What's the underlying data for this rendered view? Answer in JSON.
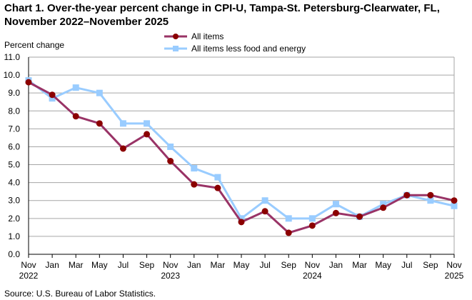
{
  "chart_data": {
    "type": "line",
    "title": "Chart 1. Over-the-year percent change in CPI-U, Tampa-St. Petersburg-Clearwater, FL, November 2022–November 2025",
    "ylabel": "Percent change",
    "xlabel": "",
    "ylim": [
      0,
      11
    ],
    "yticks": [
      "0.0",
      "1.0",
      "2.0",
      "3.0",
      "4.0",
      "5.0",
      "6.0",
      "7.0",
      "8.0",
      "9.0",
      "10.0",
      "11.0"
    ],
    "grid": true,
    "legend": "top-center",
    "x": [
      "Nov 2022",
      "Jan 2023",
      "Mar 2023",
      "May 2023",
      "Jul 2023",
      "Sep 2023",
      "Nov 2023",
      "Jan 2024",
      "Mar 2024",
      "May 2024",
      "Jul 2024",
      "Sep 2024",
      "Nov 2024",
      "Jan 2025",
      "Mar 2025",
      "May 2025",
      "Jul 2025",
      "Sep 2025",
      "Nov 2025"
    ],
    "xtick_labels": [
      [
        "Nov",
        "2022"
      ],
      [
        "Jan",
        ""
      ],
      [
        "Mar",
        ""
      ],
      [
        "May",
        ""
      ],
      [
        "Jul",
        ""
      ],
      [
        "Sep",
        ""
      ],
      [
        "Nov",
        "2023"
      ],
      [
        "Jan",
        ""
      ],
      [
        "Mar",
        ""
      ],
      [
        "May",
        ""
      ],
      [
        "Jul",
        ""
      ],
      [
        "Sep",
        ""
      ],
      [
        "Nov",
        "2024"
      ],
      [
        "Jan",
        ""
      ],
      [
        "Mar",
        ""
      ],
      [
        "May",
        ""
      ],
      [
        "Jul",
        ""
      ],
      [
        "Sep",
        ""
      ],
      [
        "Nov",
        "2025"
      ]
    ],
    "series": [
      {
        "name": "All items",
        "color": "#993366",
        "marker": "circle",
        "marker_color": "#8b0000",
        "values": [
          9.6,
          8.9,
          7.7,
          7.3,
          5.9,
          6.7,
          5.2,
          3.9,
          3.7,
          1.8,
          2.4,
          1.2,
          1.6,
          2.3,
          2.1,
          2.6,
          3.3,
          3.3,
          3.0
        ]
      },
      {
        "name": "All items less food and energy",
        "color": "#99ccff",
        "marker": "square",
        "marker_color": "#99ccff",
        "values": [
          9.7,
          8.7,
          9.3,
          9.0,
          7.3,
          7.3,
          6.0,
          4.8,
          4.3,
          2.0,
          3.0,
          2.0,
          2.0,
          2.8,
          2.1,
          2.8,
          3.3,
          3.0,
          2.7
        ]
      }
    ],
    "source": "Source: U.S. Bureau of Labor Statistics."
  }
}
